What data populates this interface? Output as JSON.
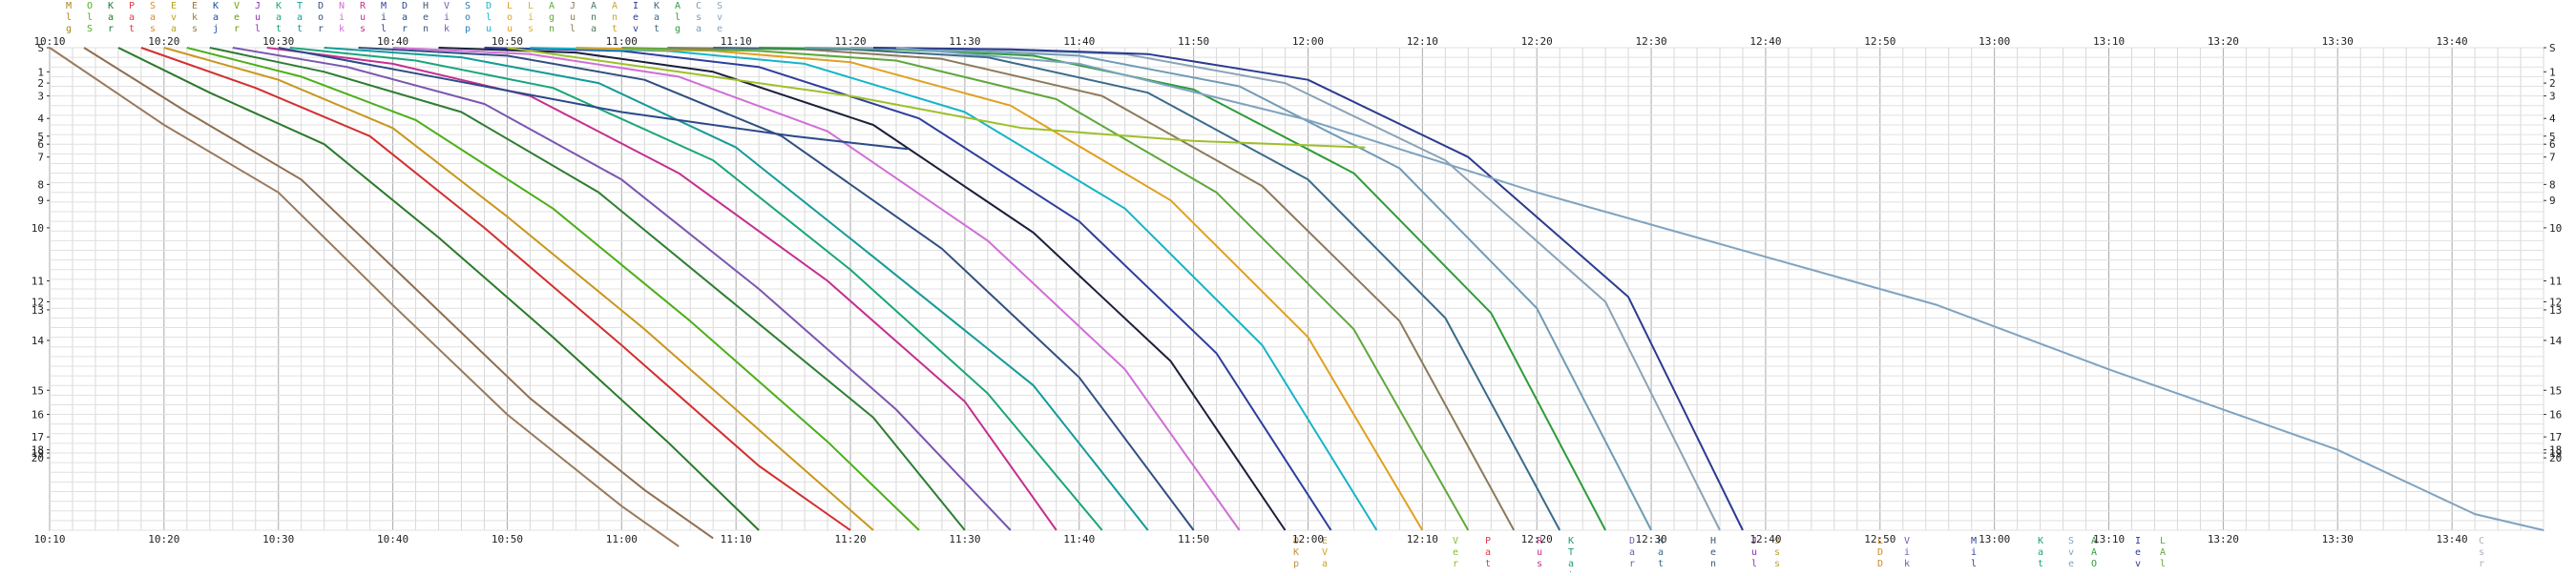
{
  "chart_data": {
    "type": "line",
    "title": "",
    "xlabel": "",
    "ylabel": "",
    "x_ticks": [
      "10:10",
      "10:20",
      "10:30",
      "10:40",
      "10:50",
      "11:00",
      "11:10",
      "11:20",
      "11:30",
      "11:40",
      "11:50",
      "12:00",
      "12:10",
      "12:20",
      "12:30",
      "12:40",
      "12:50",
      "13:00",
      "13:10",
      "13:20",
      "13:30",
      "13:40"
    ],
    "xlim_minutes": [
      0,
      218
    ],
    "y_left_ticks": [
      "S",
      "1",
      "2",
      "3",
      "4",
      "5",
      "6",
      "7",
      "8",
      "9",
      "10",
      "11",
      "12",
      "13",
      "14",
      "15",
      "16",
      "17",
      "18",
      "19",
      "20"
    ],
    "y_right_ticks": [
      "S",
      "1",
      "2",
      "3",
      "4",
      "5",
      "6",
      "7",
      "8",
      "9",
      "10",
      "11",
      "12",
      "13",
      "14",
      "15",
      "16",
      "17",
      "18",
      "19",
      "20"
    ],
    "grid": true,
    "legend_top": [
      {
        "abbr": "Mlg",
        "color": "#a8861f"
      },
      {
        "abbr": "OlS",
        "color": "#4caf1a"
      },
      {
        "abbr": "Kar",
        "color": "#1e7a2e"
      },
      {
        "abbr": "Pat",
        "color": "#e53945"
      },
      {
        "abbr": "Sas",
        "color": "#d98b2b"
      },
      {
        "abbr": "Eva",
        "color": "#b7a21d"
      },
      {
        "abbr": "Eks",
        "color": "#9a7a3c"
      },
      {
        "abbr": "Kaj",
        "color": "#1c4f9b"
      },
      {
        "abbr": "Ver",
        "color": "#6a9e10"
      },
      {
        "abbr": "Jul",
        "color": "#8e2fb8"
      },
      {
        "abbr": "Kat",
        "color": "#1aa57a"
      },
      {
        "abbr": "Tat",
        "color": "#149a9a"
      },
      {
        "abbr": "Dor",
        "color": "#314f80"
      },
      {
        "abbr": "Nik",
        "color": "#cf6fd6"
      },
      {
        "abbr": "Rus",
        "color": "#c4308f"
      },
      {
        "abbr": "Mil",
        "color": "#2d3e9e"
      },
      {
        "abbr": "Dar",
        "color": "#2b4a8a"
      },
      {
        "abbr": "Hen",
        "color": "#3f5873"
      },
      {
        "abbr": "Vik",
        "color": "#7a56b0"
      },
      {
        "abbr": "Sop",
        "color": "#2a7fb5"
      },
      {
        "abbr": "Dlu",
        "color": "#16b4c8"
      },
      {
        "abbr": "Lou",
        "color": "#e0a020"
      },
      {
        "abbr": "Lis",
        "color": "#d4b52a"
      },
      {
        "abbr": "Agn",
        "color": "#5ea83c"
      },
      {
        "abbr": "Jul",
        "color": "#8c7a5a"
      },
      {
        "abbr": "Ana",
        "color": "#4a7a5e"
      },
      {
        "abbr": "Ant",
        "color": "#c7a53b"
      },
      {
        "abbr": "Iev",
        "color": "#2b3b8f"
      },
      {
        "abbr": "Kat",
        "color": "#3a6b8a"
      },
      {
        "abbr": "Alg",
        "color": "#2e9c3a"
      },
      {
        "abbr": "Csa",
        "color": "#6f9bb6"
      },
      {
        "abbr": "Sve",
        "color": "#8aa3b8"
      }
    ],
    "legend_bottom": [
      {
        "abbr": "OKp",
        "color": "#c28f3c"
      },
      {
        "abbr": "EVa",
        "color": "#c9a21d"
      },
      {
        "abbr": "Ver",
        "color": "#7fbf2a"
      },
      {
        "abbr": "Pat",
        "color": "#e53945"
      },
      {
        "abbr": "Rus",
        "color": "#c4308f"
      },
      {
        "abbr": "KTat",
        "color": "#1a9a7a"
      },
      {
        "abbr": "Dar",
        "color": "#7a56b0"
      },
      {
        "abbr": "Kat",
        "color": "#3a6b8a"
      },
      {
        "abbr": "Hen",
        "color": "#3f5873"
      },
      {
        "abbr": "Jul",
        "color": "#8e2fb8"
      },
      {
        "abbr": "Sss",
        "color": "#b6a23b"
      },
      {
        "abbr": "LDD",
        "color": "#c98b2b"
      },
      {
        "abbr": "Vik",
        "color": "#7a56b0"
      },
      {
        "abbr": "Mil",
        "color": "#2d3e9e"
      },
      {
        "abbr": "Kat",
        "color": "#1aa57a"
      },
      {
        "abbr": "Sve",
        "color": "#8aa3b8"
      },
      {
        "abbr": "AAO",
        "color": "#2e9c3a"
      },
      {
        "abbr": "Iev",
        "color": "#2b3b8f"
      },
      {
        "abbr": "LAl",
        "color": "#5ea83c"
      },
      {
        "abbr": "Csr",
        "color": "#a8b3c0"
      }
    ],
    "series": [
      {
        "color": "#9a7a5c",
        "points": [
          [
            0,
            0
          ],
          [
            10,
            48
          ],
          [
            20,
            90
          ],
          [
            30,
            160
          ],
          [
            40,
            228
          ],
          [
            50,
            285
          ],
          [
            55,
            310
          ]
        ]
      },
      {
        "color": "#8f6e50",
        "points": [
          [
            3,
            0
          ],
          [
            12,
            40
          ],
          [
            22,
            82
          ],
          [
            32,
            150
          ],
          [
            42,
            218
          ],
          [
            52,
            275
          ],
          [
            58,
            305
          ]
        ]
      },
      {
        "color": "#2a7a2a",
        "points": [
          [
            6,
            0
          ],
          [
            14,
            28
          ],
          [
            24,
            60
          ],
          [
            34,
            118
          ],
          [
            44,
            180
          ],
          [
            54,
            245
          ],
          [
            62,
            300
          ]
        ]
      },
      {
        "color": "#d32f2f",
        "points": [
          [
            8,
            0
          ],
          [
            18,
            25
          ],
          [
            28,
            55
          ],
          [
            38,
            112
          ],
          [
            50,
            185
          ],
          [
            62,
            260
          ],
          [
            70,
            300
          ]
        ]
      },
      {
        "color": "#c9961e",
        "points": [
          [
            10,
            0
          ],
          [
            20,
            20
          ],
          [
            30,
            50
          ],
          [
            40,
            105
          ],
          [
            52,
            175
          ],
          [
            64,
            250
          ],
          [
            72,
            300
          ]
        ]
      },
      {
        "color": "#4caf1a",
        "points": [
          [
            12,
            0
          ],
          [
            22,
            18
          ],
          [
            32,
            45
          ],
          [
            44,
            100
          ],
          [
            56,
            170
          ],
          [
            68,
            245
          ],
          [
            76,
            300
          ]
        ]
      },
      {
        "color": "#2e7d32",
        "points": [
          [
            14,
            0
          ],
          [
            24,
            15
          ],
          [
            36,
            40
          ],
          [
            48,
            90
          ],
          [
            60,
            160
          ],
          [
            72,
            230
          ],
          [
            80,
            300
          ]
        ]
      },
      {
        "color": "#7a56b0",
        "points": [
          [
            16,
            0
          ],
          [
            26,
            12
          ],
          [
            38,
            35
          ],
          [
            50,
            82
          ],
          [
            62,
            150
          ],
          [
            74,
            225
          ],
          [
            84,
            300
          ]
        ]
      },
      {
        "color": "#c4308f",
        "points": [
          [
            19,
            0
          ],
          [
            30,
            10
          ],
          [
            42,
            30
          ],
          [
            55,
            78
          ],
          [
            68,
            145
          ],
          [
            80,
            220
          ],
          [
            88,
            300
          ]
        ]
      },
      {
        "color": "#1aa57a",
        "points": [
          [
            21,
            0
          ],
          [
            32,
            8
          ],
          [
            44,
            25
          ],
          [
            58,
            70
          ],
          [
            70,
            138
          ],
          [
            82,
            215
          ],
          [
            92,
            300
          ]
        ]
      },
      {
        "color": "#149a9a",
        "points": [
          [
            24,
            0
          ],
          [
            36,
            6
          ],
          [
            48,
            22
          ],
          [
            60,
            62
          ],
          [
            72,
            130
          ],
          [
            86,
            210
          ],
          [
            96,
            300
          ]
        ]
      },
      {
        "color": "#314f80",
        "points": [
          [
            27,
            0
          ],
          [
            40,
            5
          ],
          [
            52,
            20
          ],
          [
            64,
            55
          ],
          [
            78,
            125
          ],
          [
            90,
            205
          ],
          [
            100,
            300
          ]
        ]
      },
      {
        "color": "#cf6fd6",
        "points": [
          [
            30,
            0
          ],
          [
            42,
            4
          ],
          [
            55,
            18
          ],
          [
            68,
            52
          ],
          [
            82,
            120
          ],
          [
            94,
            200
          ],
          [
            104,
            300
          ]
        ]
      },
      {
        "color": "#1b1f3b",
        "points": [
          [
            34,
            0
          ],
          [
            46,
            3
          ],
          [
            58,
            15
          ],
          [
            72,
            48
          ],
          [
            86,
            115
          ],
          [
            98,
            195
          ],
          [
            108,
            300
          ]
        ]
      },
      {
        "color": "#2d3e9e",
        "points": [
          [
            38,
            0
          ],
          [
            50,
            2
          ],
          [
            62,
            12
          ],
          [
            76,
            44
          ],
          [
            90,
            108
          ],
          [
            102,
            190
          ],
          [
            112,
            300
          ]
        ]
      },
      {
        "color": "#16b4c8",
        "points": [
          [
            42,
            0
          ],
          [
            54,
            2
          ],
          [
            66,
            10
          ],
          [
            80,
            40
          ],
          [
            94,
            100
          ],
          [
            106,
            185
          ],
          [
            116,
            300
          ]
        ]
      },
      {
        "color": "#e0a020",
        "points": [
          [
            46,
            0
          ],
          [
            58,
            2
          ],
          [
            70,
            9
          ],
          [
            84,
            36
          ],
          [
            98,
            95
          ],
          [
            110,
            180
          ],
          [
            120,
            300
          ]
        ]
      },
      {
        "color": "#5ea83c",
        "points": [
          [
            50,
            0
          ],
          [
            62,
            2
          ],
          [
            74,
            8
          ],
          [
            88,
            32
          ],
          [
            102,
            90
          ],
          [
            114,
            175
          ],
          [
            124,
            300
          ]
        ]
      },
      {
        "color": "#8c7a5a",
        "points": [
          [
            54,
            0
          ],
          [
            66,
            1
          ],
          [
            78,
            7
          ],
          [
            92,
            30
          ],
          [
            106,
            86
          ],
          [
            118,
            170
          ],
          [
            128,
            300
          ]
        ]
      },
      {
        "color": "#3a6b8a",
        "points": [
          [
            58,
            0
          ],
          [
            70,
            1
          ],
          [
            82,
            6
          ],
          [
            96,
            28
          ],
          [
            110,
            82
          ],
          [
            122,
            168
          ],
          [
            132,
            300
          ]
        ]
      },
      {
        "color": "#2e9c3a",
        "points": [
          [
            62,
            0
          ],
          [
            74,
            1
          ],
          [
            86,
            5
          ],
          [
            100,
            26
          ],
          [
            114,
            78
          ],
          [
            126,
            165
          ],
          [
            136,
            300
          ]
        ]
      },
      {
        "color": "#6f9bb6",
        "points": [
          [
            66,
            0
          ],
          [
            78,
            1
          ],
          [
            90,
            5
          ],
          [
            104,
            24
          ],
          [
            118,
            75
          ],
          [
            130,
            162
          ],
          [
            140,
            300
          ]
        ]
      },
      {
        "color": "#8aa3b8",
        "points": [
          [
            70,
            0
          ],
          [
            82,
            1
          ],
          [
            94,
            4
          ],
          [
            108,
            22
          ],
          [
            122,
            70
          ],
          [
            136,
            158
          ],
          [
            146,
            300
          ]
        ]
      },
      {
        "color": "#2b3b8f",
        "points": [
          [
            72,
            0
          ],
          [
            84,
            1
          ],
          [
            96,
            4
          ],
          [
            110,
            20
          ],
          [
            124,
            68
          ],
          [
            138,
            155
          ],
          [
            148,
            300
          ]
        ]
      },
      {
        "color": "#9fbf2a",
        "points": [
          [
            40,
            0
          ],
          [
            55,
            15
          ],
          [
            70,
            30
          ],
          [
            85,
            50
          ],
          [
            100,
            58
          ],
          [
            115,
            62
          ]
        ]
      },
      {
        "color": "#2b4a8a",
        "points": [
          [
            20,
            0
          ],
          [
            35,
            20
          ],
          [
            50,
            40
          ],
          [
            65,
            55
          ],
          [
            75,
            63
          ]
        ]
      },
      {
        "color": "#7fa3c0",
        "points": [
          [
            74,
            0
          ],
          [
            90,
            10
          ],
          [
            110,
            45
          ],
          [
            130,
            90
          ],
          [
            150,
            130
          ],
          [
            165,
            160
          ],
          [
            180,
            200
          ],
          [
            200,
            250
          ],
          [
            212,
            290
          ],
          [
            218,
            300
          ]
        ]
      }
    ]
  }
}
